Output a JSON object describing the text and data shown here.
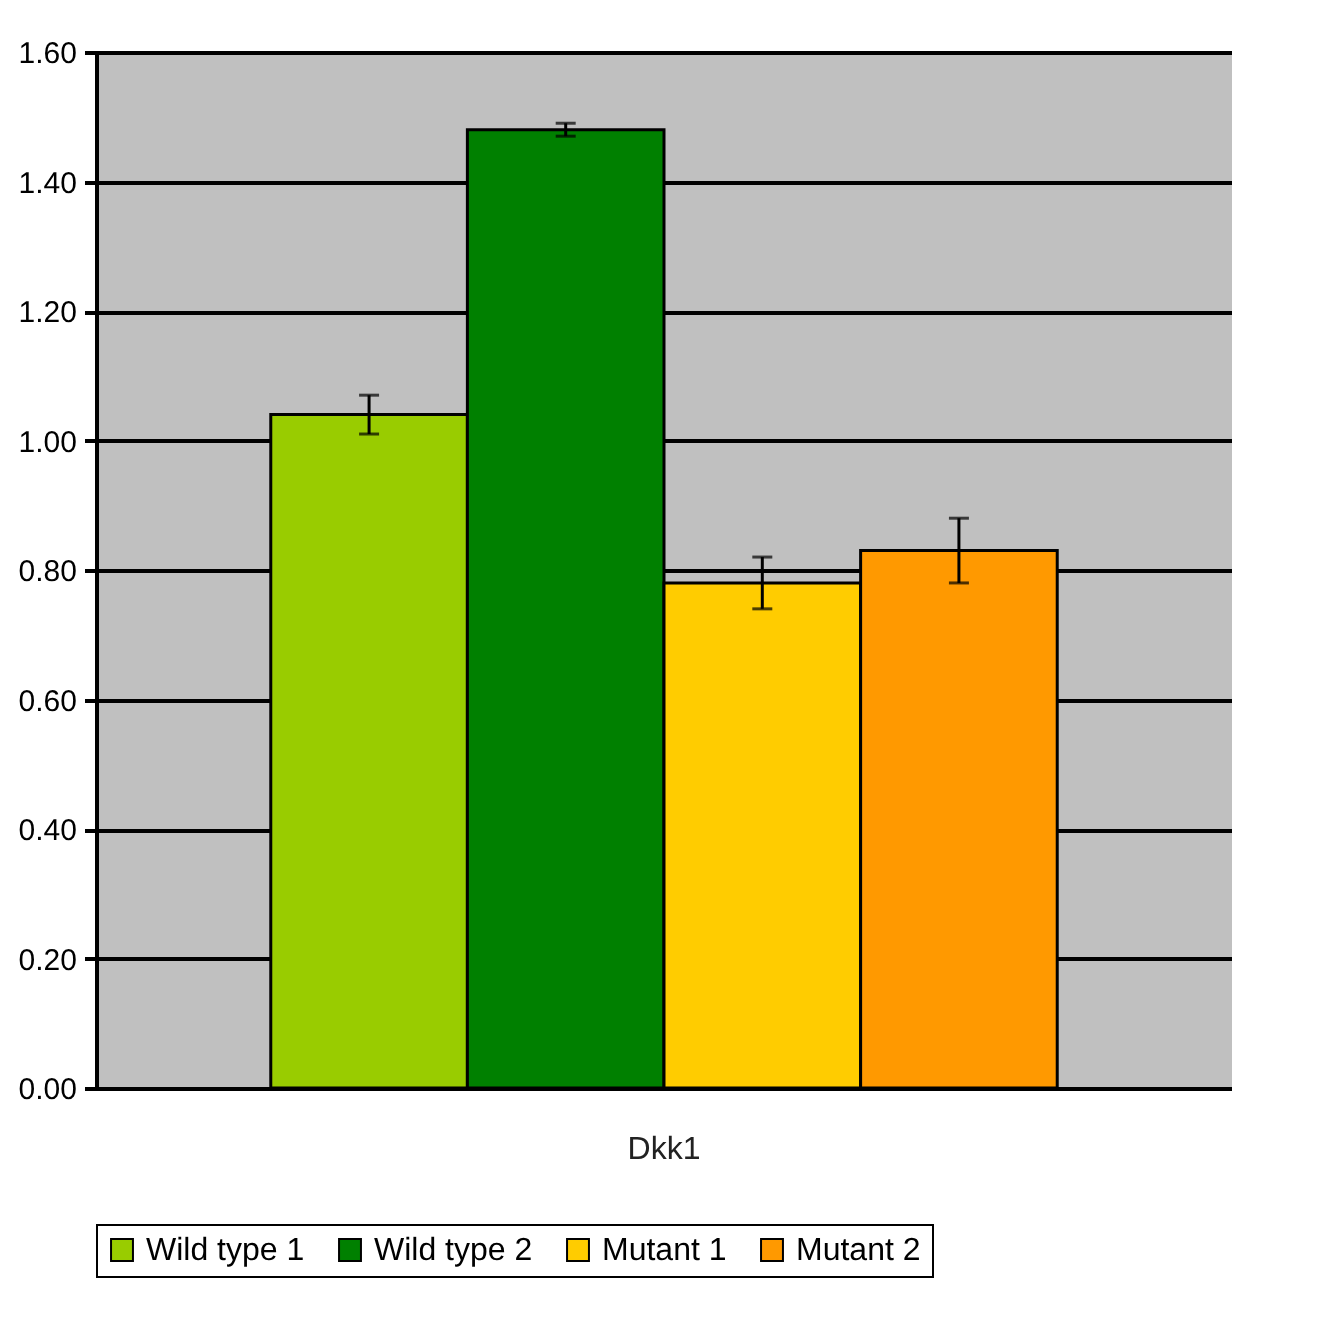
{
  "chart_data": {
    "type": "bar",
    "categories": [
      "Dkk1"
    ],
    "series": [
      {
        "name": "Wild type 1",
        "color": "#99cc00",
        "values": [
          1.04
        ],
        "errors": [
          0.03
        ]
      },
      {
        "name": "Wild type 2",
        "color": "#008000",
        "values": [
          1.48
        ],
        "errors": [
          0.01
        ]
      },
      {
        "name": "Mutant 1",
        "color": "#ffcc00",
        "values": [
          0.78
        ],
        "errors": [
          0.04
        ]
      },
      {
        "name": "Mutant 2",
        "color": "#ff9900",
        "values": [
          0.83
        ],
        "errors": [
          0.05
        ]
      }
    ],
    "ylim": [
      0,
      1.6
    ],
    "yticks": [
      {
        "value": 0,
        "label": "0.00"
      },
      {
        "value": 0.2,
        "label": "0.20"
      },
      {
        "value": 0.4,
        "label": "0.40"
      },
      {
        "value": 0.6,
        "label": "0.60"
      },
      {
        "value": 0.8,
        "label": "0.80"
      },
      {
        "value": 1,
        "label": "1.00"
      },
      {
        "value": 1.2,
        "label": "1.20"
      },
      {
        "value": 1.4,
        "label": "1.40"
      },
      {
        "value": 1.6,
        "label": "1.60"
      }
    ],
    "grid": "y",
    "legend": "bottom"
  }
}
